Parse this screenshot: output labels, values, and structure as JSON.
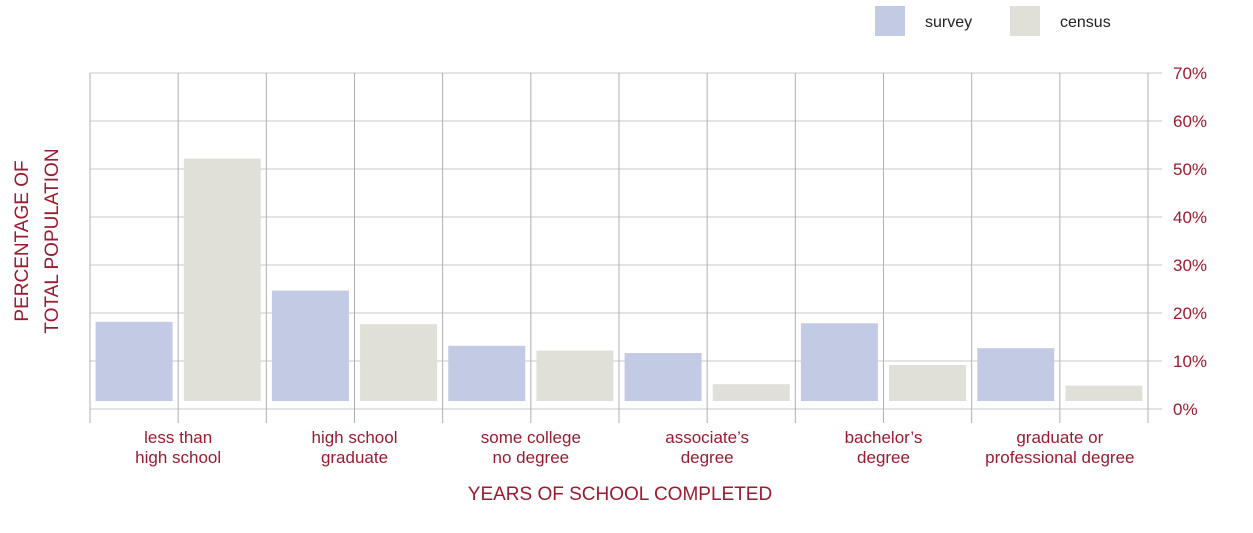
{
  "chart_data": {
    "type": "bar",
    "xlabel": "YEARS OF SCHOOL COMPLETED",
    "ylabel_lines": [
      "PERCENTAGE OF",
      "TOTAL POPULATION"
    ],
    "categories": [
      [
        "less than",
        "high school"
      ],
      [
        "high school",
        "graduate"
      ],
      [
        "some college",
        "no degree"
      ],
      [
        "associate’s",
        "degree"
      ],
      [
        "bachelor’s",
        "degree"
      ],
      [
        "graduate or",
        "professional degree"
      ]
    ],
    "series": [
      {
        "name": "survey",
        "color": "#c2cbe3",
        "values": [
          16.5,
          23.0,
          11.5,
          10.0,
          16.2,
          11.0
        ]
      },
      {
        "name": "census",
        "color": "#e0e0d8",
        "values": [
          50.5,
          16.0,
          10.5,
          3.5,
          7.5,
          3.2
        ]
      }
    ],
    "ylim": [
      0,
      70
    ],
    "yticks": [
      "0%",
      "10%",
      "20%",
      "30%",
      "40%",
      "50%",
      "60%",
      "70%"
    ],
    "ytick_values": [
      0,
      10,
      20,
      30,
      40,
      50,
      60,
      70
    ],
    "grid": true,
    "legend_position": "top-right",
    "accent_color": "#9b1b30"
  }
}
